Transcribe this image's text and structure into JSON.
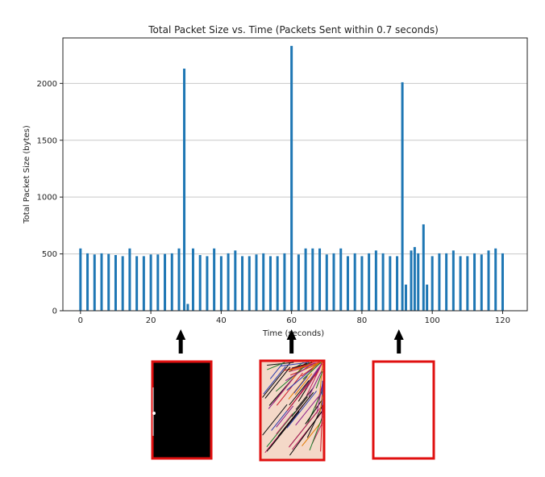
{
  "chart_data": {
    "type": "bar",
    "title": "Total Packet Size vs. Time (Packets Sent within 0.7 seconds)",
    "xlabel": "Time (seconds)",
    "ylabel": "Total Packet Size (bytes)",
    "xlim": [
      -5,
      127
    ],
    "ylim": [
      0,
      2400
    ],
    "xticks": [
      0,
      20,
      40,
      60,
      80,
      100,
      120
    ],
    "yticks": [
      0,
      500,
      1000,
      1500,
      2000
    ],
    "grid": "horizontal",
    "color": "#1f77b4",
    "points": [
      {
        "x": 0,
        "y": 548
      },
      {
        "x": 2,
        "y": 505
      },
      {
        "x": 4,
        "y": 495
      },
      {
        "x": 6,
        "y": 505
      },
      {
        "x": 8,
        "y": 500
      },
      {
        "x": 10,
        "y": 490
      },
      {
        "x": 12,
        "y": 480
      },
      {
        "x": 14,
        "y": 548
      },
      {
        "x": 16,
        "y": 480
      },
      {
        "x": 18,
        "y": 480
      },
      {
        "x": 20,
        "y": 495
      },
      {
        "x": 22,
        "y": 495
      },
      {
        "x": 24,
        "y": 500
      },
      {
        "x": 26,
        "y": 505
      },
      {
        "x": 28,
        "y": 548
      },
      {
        "x": 29.5,
        "y": 2130
      },
      {
        "x": 30.5,
        "y": 60
      },
      {
        "x": 32,
        "y": 548
      },
      {
        "x": 34,
        "y": 490
      },
      {
        "x": 36,
        "y": 480
      },
      {
        "x": 38,
        "y": 548
      },
      {
        "x": 40,
        "y": 480
      },
      {
        "x": 42,
        "y": 505
      },
      {
        "x": 44,
        "y": 530
      },
      {
        "x": 46,
        "y": 480
      },
      {
        "x": 48,
        "y": 480
      },
      {
        "x": 50,
        "y": 495
      },
      {
        "x": 52,
        "y": 505
      },
      {
        "x": 54,
        "y": 480
      },
      {
        "x": 56,
        "y": 480
      },
      {
        "x": 58,
        "y": 505
      },
      {
        "x": 60,
        "y": 2330
      },
      {
        "x": 62,
        "y": 495
      },
      {
        "x": 64,
        "y": 548
      },
      {
        "x": 66,
        "y": 548
      },
      {
        "x": 68,
        "y": 548
      },
      {
        "x": 70,
        "y": 495
      },
      {
        "x": 72,
        "y": 505
      },
      {
        "x": 74,
        "y": 548
      },
      {
        "x": 76,
        "y": 480
      },
      {
        "x": 78,
        "y": 505
      },
      {
        "x": 80,
        "y": 480
      },
      {
        "x": 82,
        "y": 505
      },
      {
        "x": 84,
        "y": 530
      },
      {
        "x": 86,
        "y": 505
      },
      {
        "x": 88,
        "y": 480
      },
      {
        "x": 90,
        "y": 480
      },
      {
        "x": 91.5,
        "y": 2010
      },
      {
        "x": 92.5,
        "y": 230
      },
      {
        "x": 94,
        "y": 530
      },
      {
        "x": 95,
        "y": 560
      },
      {
        "x": 96,
        "y": 505
      },
      {
        "x": 97.5,
        "y": 760
      },
      {
        "x": 98.5,
        "y": 230
      },
      {
        "x": 100,
        "y": 480
      },
      {
        "x": 102,
        "y": 505
      },
      {
        "x": 104,
        "y": 505
      },
      {
        "x": 106,
        "y": 530
      },
      {
        "x": 108,
        "y": 480
      },
      {
        "x": 110,
        "y": 480
      },
      {
        "x": 112,
        "y": 505
      },
      {
        "x": 114,
        "y": 495
      },
      {
        "x": 116,
        "y": 530
      },
      {
        "x": 118,
        "y": 548
      },
      {
        "x": 120,
        "y": 505
      }
    ]
  },
  "annotations": {
    "arrows": [
      {
        "x": 28.5,
        "name": "arrow-1"
      },
      {
        "x": 60,
        "name": "arrow-2"
      },
      {
        "x": 90.5,
        "name": "arrow-3"
      }
    ],
    "panels": [
      {
        "name": "panel-black",
        "fill": "#000000",
        "border": "#e01010"
      },
      {
        "name": "panel-scribble",
        "fill": "#f4d8c8",
        "border": "#e01010"
      },
      {
        "name": "panel-white",
        "fill": "#ffffff",
        "border": "#e01010"
      }
    ]
  }
}
